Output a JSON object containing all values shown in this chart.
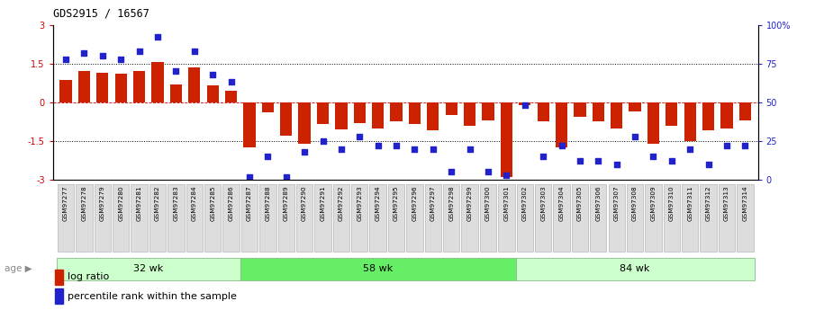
{
  "title": "GDS2915 / 16567",
  "samples": [
    "GSM97277",
    "GSM97278",
    "GSM97279",
    "GSM97280",
    "GSM97281",
    "GSM97282",
    "GSM97283",
    "GSM97284",
    "GSM97285",
    "GSM97286",
    "GSM97287",
    "GSM97288",
    "GSM97289",
    "GSM97290",
    "GSM97291",
    "GSM97292",
    "GSM97293",
    "GSM97294",
    "GSM97295",
    "GSM97296",
    "GSM97297",
    "GSM97298",
    "GSM97299",
    "GSM97300",
    "GSM97301",
    "GSM97302",
    "GSM97303",
    "GSM97304",
    "GSM97305",
    "GSM97306",
    "GSM97307",
    "GSM97308",
    "GSM97309",
    "GSM97310",
    "GSM97311",
    "GSM97312",
    "GSM97313",
    "GSM97314"
  ],
  "log_ratio": [
    0.85,
    1.2,
    1.15,
    1.1,
    1.2,
    1.55,
    0.7,
    1.35,
    0.65,
    0.45,
    -1.75,
    -0.4,
    -1.3,
    -1.6,
    -0.85,
    -1.05,
    -0.8,
    -1.0,
    -0.75,
    -0.85,
    -1.1,
    -0.5,
    -0.9,
    -0.7,
    -2.9,
    -0.1,
    -0.75,
    -1.75,
    -0.55,
    -0.75,
    -1.0,
    -0.35,
    -1.6,
    -0.9,
    -1.5,
    -1.1,
    -1.0,
    -0.7
  ],
  "percentile": [
    78,
    82,
    80,
    78,
    83,
    92,
    70,
    83,
    68,
    63,
    2,
    15,
    2,
    18,
    25,
    20,
    28,
    22,
    22,
    20,
    20,
    5,
    20,
    5,
    3,
    48,
    15,
    22,
    12,
    12,
    10,
    28,
    15,
    12,
    20,
    10,
    22,
    22
  ],
  "groups": [
    {
      "label": "32 wk",
      "start": 0,
      "end": 9
    },
    {
      "label": "58 wk",
      "start": 10,
      "end": 24
    },
    {
      "label": "84 wk",
      "start": 25,
      "end": 37
    }
  ],
  "group_colors": [
    "#ccffcc",
    "#66ee66",
    "#ccffcc"
  ],
  "bar_color": "#cc2200",
  "scatter_color": "#2222cc",
  "tick_bg_color": "#dddddd",
  "tick_border_color": "#aaaaaa"
}
